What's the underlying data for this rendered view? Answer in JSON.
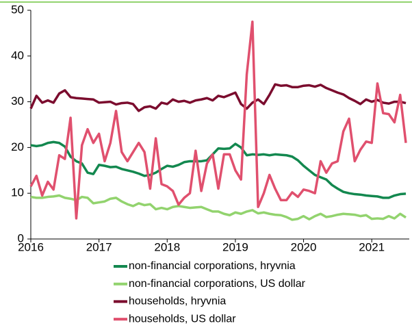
{
  "chart_data": {
    "type": "line",
    "x": [
      2016,
      2016.083,
      2016.167,
      2016.25,
      2016.333,
      2016.417,
      2016.5,
      2016.583,
      2016.667,
      2016.75,
      2016.833,
      2016.917,
      2017,
      2017.083,
      2017.167,
      2017.25,
      2017.333,
      2017.417,
      2017.5,
      2017.583,
      2017.667,
      2017.75,
      2017.833,
      2017.917,
      2018,
      2018.083,
      2018.167,
      2018.25,
      2018.333,
      2018.417,
      2018.5,
      2018.583,
      2018.667,
      2018.75,
      2018.833,
      2018.917,
      2019,
      2019.083,
      2019.167,
      2019.25,
      2019.333,
      2019.417,
      2019.5,
      2019.583,
      2019.667,
      2019.75,
      2019.833,
      2019.917,
      2020,
      2020.083,
      2020.167,
      2020.25,
      2020.333,
      2020.417,
      2020.5,
      2020.583,
      2020.667,
      2020.75,
      2020.833,
      2020.917,
      2021,
      2021.083,
      2021.167,
      2021.25,
      2021.333,
      2021.417,
      2021.5
    ],
    "series": [
      {
        "name": "non-financial corporations, hryvnia",
        "color": "#13884f",
        "values": [
          20.5,
          20.3,
          20.5,
          21,
          21.2,
          21,
          20.2,
          18,
          17,
          16.5,
          14.5,
          14.2,
          16.2,
          16,
          15.7,
          15.8,
          15.3,
          15,
          14.7,
          14.3,
          13.8,
          14,
          14.5,
          15.3,
          16,
          15.8,
          16.2,
          16.8,
          17,
          17,
          17,
          17.2,
          18.5,
          19.8,
          19.7,
          19.8,
          20.8,
          20,
          18.3,
          18.5,
          18.4,
          18.5,
          18.3,
          18.5,
          18.4,
          18.3,
          18,
          17.2,
          16,
          15,
          14,
          13.5,
          13,
          11.8,
          11,
          10.3,
          10,
          9.8,
          9.7,
          9.5,
          9.4,
          9.3,
          9,
          9,
          9.5,
          9.8,
          9.9
        ]
      },
      {
        "name": "non-financial corporations, US dollar",
        "color": "#92d36e",
        "values": [
          9.2,
          9,
          9,
          9.2,
          9.3,
          9.5,
          9,
          8.8,
          8.5,
          9.2,
          9,
          7.8,
          8,
          8.2,
          8.8,
          9,
          8.2,
          7.6,
          7.2,
          7.8,
          7.4,
          7.6,
          6.5,
          6.8,
          6.5,
          7,
          7.2,
          7,
          6.8,
          6.9,
          7,
          6.5,
          6,
          6,
          5.5,
          5.2,
          5.8,
          5.5,
          6,
          6.3,
          5.6,
          5.8,
          5.5,
          5.3,
          5.2,
          4.8,
          4.2,
          4.4,
          5,
          4.3,
          5,
          5.5,
          4.8,
          5,
          5.3,
          5.5,
          5.4,
          5.3,
          5,
          5.2,
          4.4,
          4.5,
          4.4,
          5,
          4.5,
          5.5,
          4.7
        ]
      },
      {
        "name": "households, hryvnia",
        "color": "#7b0c2e",
        "values": [
          28.5,
          31.3,
          29.8,
          30.3,
          29.8,
          31.8,
          32.5,
          31,
          30.8,
          30.7,
          30.6,
          30.5,
          29.8,
          29.9,
          30,
          29.4,
          29.7,
          29.8,
          29.5,
          28,
          28.8,
          29,
          28.5,
          29.8,
          29.5,
          30.5,
          30,
          30.2,
          29.8,
          30.3,
          30.5,
          30.8,
          30.3,
          31.3,
          31,
          31.5,
          32,
          29.5,
          28.5,
          29.8,
          30.5,
          29.5,
          31.5,
          33.8,
          33.5,
          33.6,
          33.2,
          33.2,
          33.5,
          33.6,
          33.3,
          33.7,
          33,
          32.5,
          32,
          31.6,
          30.8,
          30.2,
          29.5,
          30.5,
          30,
          30.4,
          29.8,
          29.6,
          30,
          30,
          29.7
        ]
      },
      {
        "name": "households, US dollar",
        "color": "#e0506e",
        "values": [
          11.5,
          13.8,
          9.5,
          12.5,
          10.8,
          18.3,
          17.5,
          26.5,
          4.5,
          20.5,
          24,
          21,
          23,
          17,
          21,
          28,
          19,
          17,
          19,
          21,
          19,
          11,
          22,
          12,
          11.5,
          10.5,
          7.5,
          9,
          10,
          19.3,
          10.5,
          16.5,
          18.5,
          11,
          18.5,
          18.5,
          15,
          13,
          36,
          47.5,
          7,
          10,
          14,
          11,
          8.5,
          8.5,
          10.2,
          9.2,
          10.8,
          10.5,
          10,
          17,
          14.5,
          16.5,
          17,
          23.5,
          26.3,
          17,
          19.5,
          21.3,
          21,
          34,
          27.5,
          27.3,
          25.5,
          31.5,
          21
        ]
      }
    ],
    "xlim": [
      2016,
      2021.55
    ],
    "xticks": [
      2016,
      2017,
      2018,
      2019,
      2020,
      2021
    ],
    "ylim": [
      0,
      50
    ],
    "yticks": [
      0,
      10,
      20,
      30,
      40,
      50
    ],
    "grid": false
  }
}
